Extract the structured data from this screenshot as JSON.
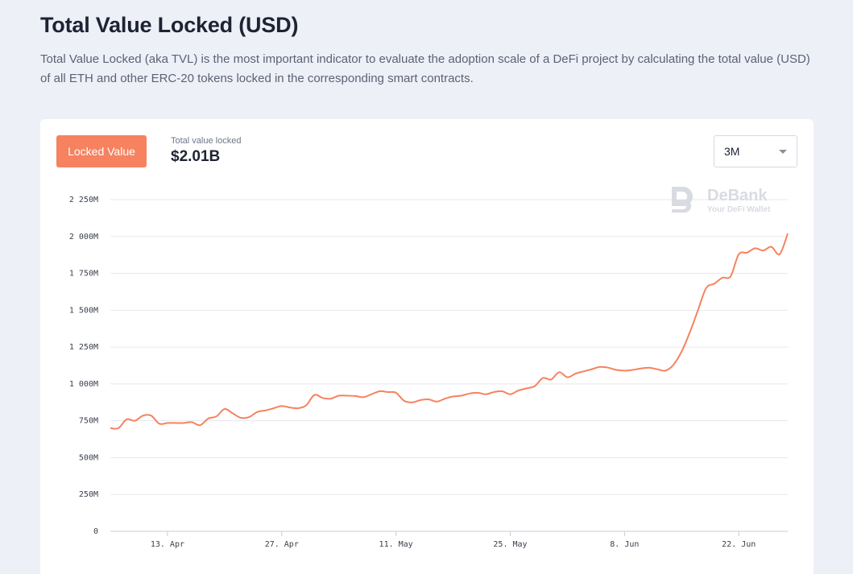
{
  "header": {
    "title": "Total Value Locked (USD)",
    "description": "Total Value Locked (aka TVL) is the most important indicator to evaluate the adoption scale of a DeFi project by calculating the total value (USD) of all ETH and other ERC-20 tokens locked in the corresponding smart contracts."
  },
  "panel": {
    "tab_label": "Locked Value",
    "tvl_label": "Total value locked",
    "tvl_value": "$2.01B",
    "range_value": "3M"
  },
  "watermark": {
    "brand": "DeBank",
    "tagline": "Your DeFi Wallet"
  },
  "colors": {
    "line": "#f6825f",
    "accent": "#f6825f",
    "grid": "#e6e8ee"
  },
  "chart_data": {
    "type": "line",
    "title": "Total Value Locked (USD)",
    "xlabel": "",
    "ylabel": "",
    "grid": true,
    "ylim": [
      0,
      2250
    ],
    "y_unit": "M",
    "y_ticks": [
      {
        "value": 0,
        "label": "0"
      },
      {
        "value": 250,
        "label": "250M"
      },
      {
        "value": 500,
        "label": "500M"
      },
      {
        "value": 750,
        "label": "750M"
      },
      {
        "value": 1000,
        "label": "1 000M"
      },
      {
        "value": 1250,
        "label": "1 250M"
      },
      {
        "value": 1500,
        "label": "1 500M"
      },
      {
        "value": 1750,
        "label": "1 750M"
      },
      {
        "value": 2000,
        "label": "2 000M"
      },
      {
        "value": 2250,
        "label": "2 250M"
      }
    ],
    "xlim": [
      0,
      83
    ],
    "x_unit": "days since 2020-04-06",
    "x_ticks": [
      {
        "value": 7,
        "label": "13. Apr"
      },
      {
        "value": 21,
        "label": "27. Apr"
      },
      {
        "value": 35,
        "label": "11. May"
      },
      {
        "value": 49,
        "label": "25. May"
      },
      {
        "value": 63,
        "label": "8. Jun"
      },
      {
        "value": 77,
        "label": "22. Jun"
      }
    ],
    "series": [
      {
        "name": "Locked Value",
        "x": [
          0,
          1,
          2,
          3,
          4,
          5,
          6,
          7,
          8,
          9,
          10,
          11,
          12,
          13,
          14,
          15,
          16,
          17,
          18,
          19,
          20,
          21,
          22,
          23,
          24,
          25,
          26,
          27,
          28,
          29,
          30,
          31,
          32,
          33,
          34,
          35,
          36,
          37,
          38,
          39,
          40,
          41,
          42,
          43,
          44,
          45,
          46,
          47,
          48,
          49,
          50,
          51,
          52,
          53,
          54,
          55,
          56,
          57,
          58,
          59,
          60,
          61,
          62,
          63,
          64,
          65,
          66,
          67,
          68,
          69,
          70,
          71,
          72,
          73,
          74,
          75,
          76,
          77,
          78,
          79,
          80,
          81,
          82,
          83
        ],
        "values": [
          700,
          700,
          760,
          750,
          785,
          785,
          730,
          735,
          735,
          735,
          740,
          720,
          765,
          780,
          830,
          800,
          770,
          775,
          810,
          820,
          835,
          850,
          840,
          835,
          855,
          925,
          905,
          900,
          920,
          920,
          918,
          910,
          930,
          950,
          945,
          940,
          885,
          875,
          890,
          895,
          880,
          900,
          915,
          920,
          935,
          940,
          930,
          945,
          950,
          930,
          955,
          970,
          985,
          1040,
          1030,
          1080,
          1045,
          1070,
          1085,
          1100,
          1115,
          1110,
          1095,
          1090,
          1095,
          1105,
          1110,
          1100,
          1090,
          1130,
          1220,
          1350,
          1500,
          1650,
          1680,
          1720,
          1730,
          1880,
          1890,
          1920,
          1905,
          1930,
          1880,
          2020
        ]
      }
    ]
  }
}
